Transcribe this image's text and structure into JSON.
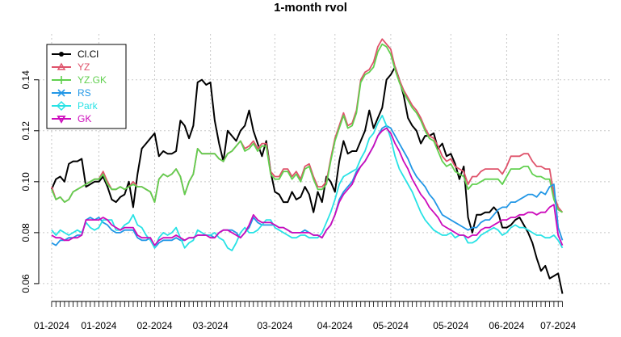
{
  "chart_data": {
    "type": "line",
    "title": "1-month rvol",
    "xlabel": "",
    "ylabel": "",
    "ylim": [
      0.053,
      0.158
    ],
    "yticks": [
      0.06,
      0.08,
      0.1,
      0.12,
      0.14
    ],
    "ytick_labels": [
      "0.06",
      "0.08",
      "0.10",
      "0.12",
      "0.14"
    ],
    "xlim": [
      -3,
      130
    ],
    "x_label_positions": [
      0,
      11,
      24,
      37,
      52,
      66,
      79,
      93,
      106,
      118
    ],
    "x_labels": [
      "01-2024",
      "01-2024",
      "02-2024",
      "03-2024",
      "03-2024",
      "04-2024",
      "05-2024",
      "05-2024",
      "06-2024",
      "07-2024"
    ],
    "grid": true,
    "legend_position": "top-left",
    "x": [
      0,
      1,
      2,
      3,
      4,
      5,
      6,
      7,
      8,
      9,
      10,
      11,
      12,
      13,
      14,
      15,
      16,
      17,
      18,
      19,
      20,
      21,
      22,
      23,
      24,
      25,
      26,
      27,
      28,
      29,
      30,
      31,
      32,
      33,
      34,
      35,
      36,
      37,
      38,
      39,
      40,
      41,
      42,
      43,
      44,
      45,
      46,
      47,
      48,
      49,
      50,
      51,
      52,
      53,
      54,
      55,
      56,
      57,
      58,
      59,
      60,
      61,
      62,
      63,
      64,
      65,
      66,
      67,
      68,
      69,
      70,
      71,
      72,
      73,
      74,
      75,
      76,
      77,
      78,
      79,
      80,
      81,
      82,
      83,
      84,
      85,
      86,
      87,
      88,
      89,
      90,
      91,
      92,
      93,
      94,
      95,
      96,
      97,
      98,
      99,
      100,
      101,
      102,
      103,
      104,
      105,
      106,
      107,
      108,
      109,
      110,
      111,
      112,
      113,
      114,
      115,
      116,
      117,
      118,
      119
    ],
    "series": [
      {
        "name": "Cl.Cl",
        "color": "#000000",
        "marker": "circle",
        "values": [
          0.097,
          0.101,
          0.102,
          0.1,
          0.107,
          0.108,
          0.108,
          0.109,
          0.098,
          0.099,
          0.1,
          0.1,
          0.102,
          0.098,
          0.093,
          0.092,
          0.094,
          0.095,
          0.1,
          0.09,
          0.103,
          0.113,
          0.115,
          0.117,
          0.119,
          0.11,
          0.112,
          0.111,
          0.111,
          0.112,
          0.124,
          0.122,
          0.117,
          0.122,
          0.139,
          0.14,
          0.138,
          0.139,
          0.124,
          0.115,
          0.108,
          0.12,
          0.118,
          0.116,
          0.12,
          0.122,
          0.128,
          0.12,
          0.115,
          0.11,
          0.116,
          0.104,
          0.096,
          0.095,
          0.092,
          0.092,
          0.096,
          0.093,
          0.094,
          0.098,
          0.095,
          0.088,
          0.096,
          0.092,
          0.102,
          0.1,
          0.096,
          0.108,
          0.116,
          0.111,
          0.112,
          0.112,
          0.116,
          0.12,
          0.128,
          0.121,
          0.125,
          0.129,
          0.14,
          0.142,
          0.145,
          0.14,
          0.134,
          0.125,
          0.122,
          0.12,
          0.115,
          0.118,
          0.118,
          0.119,
          0.113,
          0.115,
          0.11,
          0.111,
          0.107,
          0.101,
          0.106,
          0.086,
          0.08,
          0.087,
          0.087,
          0.088,
          0.088,
          0.09,
          0.088,
          0.082,
          0.082,
          0.083,
          0.085,
          0.086,
          0.083,
          0.08,
          0.076,
          0.07,
          0.065,
          0.067,
          0.062,
          0.063,
          0.064,
          0.056
        ]
      },
      {
        "name": "YZ",
        "color": "#df536b",
        "marker": "triangle",
        "values": [
          0.098,
          0.093,
          0.094,
          0.092,
          0.093,
          0.096,
          0.097,
          0.098,
          0.099,
          0.1,
          0.101,
          0.101,
          0.104,
          0.1,
          0.097,
          0.097,
          0.098,
          0.097,
          0.098,
          0.1,
          0.098,
          0.098,
          0.097,
          0.096,
          0.092,
          0.101,
          0.103,
          0.102,
          0.103,
          0.105,
          0.102,
          0.095,
          0.1,
          0.103,
          0.113,
          0.111,
          0.111,
          0.111,
          0.111,
          0.109,
          0.108,
          0.111,
          0.112,
          0.114,
          0.116,
          0.113,
          0.114,
          0.116,
          0.113,
          0.115,
          0.115,
          0.104,
          0.102,
          0.102,
          0.105,
          0.105,
          0.102,
          0.104,
          0.101,
          0.106,
          0.107,
          0.102,
          0.098,
          0.098,
          0.1,
          0.109,
          0.117,
          0.122,
          0.127,
          0.122,
          0.123,
          0.128,
          0.14,
          0.143,
          0.144,
          0.147,
          0.153,
          0.156,
          0.154,
          0.152,
          0.145,
          0.14,
          0.136,
          0.133,
          0.13,
          0.128,
          0.125,
          0.121,
          0.118,
          0.117,
          0.114,
          0.11,
          0.108,
          0.109,
          0.106,
          0.105,
          0.104,
          0.099,
          0.102,
          0.102,
          0.104,
          0.105,
          0.105,
          0.105,
          0.105,
          0.103,
          0.106,
          0.11,
          0.11,
          0.11,
          0.111,
          0.111,
          0.108,
          0.106,
          0.106,
          0.105,
          0.105,
          0.095,
          0.09,
          0.088
        ]
      },
      {
        "name": "YZ.GK",
        "color": "#61d04f",
        "marker": "plus",
        "values": [
          0.097,
          0.093,
          0.094,
          0.092,
          0.093,
          0.096,
          0.097,
          0.098,
          0.099,
          0.1,
          0.101,
          0.101,
          0.103,
          0.099,
          0.097,
          0.097,
          0.098,
          0.097,
          0.098,
          0.099,
          0.098,
          0.098,
          0.097,
          0.096,
          0.092,
          0.101,
          0.103,
          0.102,
          0.103,
          0.105,
          0.102,
          0.095,
          0.1,
          0.103,
          0.113,
          0.111,
          0.111,
          0.111,
          0.111,
          0.109,
          0.108,
          0.111,
          0.112,
          0.114,
          0.116,
          0.112,
          0.113,
          0.115,
          0.112,
          0.114,
          0.114,
          0.103,
          0.101,
          0.101,
          0.104,
          0.104,
          0.101,
          0.103,
          0.1,
          0.105,
          0.106,
          0.101,
          0.097,
          0.097,
          0.099,
          0.108,
          0.116,
          0.121,
          0.126,
          0.121,
          0.122,
          0.127,
          0.139,
          0.142,
          0.143,
          0.145,
          0.151,
          0.154,
          0.153,
          0.15,
          0.144,
          0.139,
          0.135,
          0.132,
          0.129,
          0.127,
          0.124,
          0.12,
          0.117,
          0.116,
          0.112,
          0.108,
          0.106,
          0.107,
          0.104,
          0.103,
          0.102,
          0.097,
          0.099,
          0.099,
          0.1,
          0.101,
          0.101,
          0.101,
          0.101,
          0.099,
          0.102,
          0.105,
          0.105,
          0.105,
          0.106,
          0.106,
          0.103,
          0.102,
          0.102,
          0.101,
          0.101,
          0.093,
          0.089,
          0.088
        ]
      },
      {
        "name": "RS",
        "color": "#2297e6",
        "marker": "cross",
        "values": [
          0.076,
          0.075,
          0.077,
          0.077,
          0.078,
          0.078,
          0.079,
          0.079,
          0.085,
          0.086,
          0.085,
          0.086,
          0.084,
          0.083,
          0.081,
          0.08,
          0.08,
          0.081,
          0.081,
          0.081,
          0.078,
          0.077,
          0.077,
          0.078,
          0.074,
          0.076,
          0.077,
          0.077,
          0.077,
          0.078,
          0.077,
          0.077,
          0.078,
          0.078,
          0.079,
          0.079,
          0.079,
          0.079,
          0.078,
          0.08,
          0.081,
          0.081,
          0.081,
          0.08,
          0.078,
          0.08,
          0.082,
          0.086,
          0.084,
          0.083,
          0.083,
          0.083,
          0.083,
          0.082,
          0.082,
          0.081,
          0.08,
          0.08,
          0.08,
          0.081,
          0.08,
          0.079,
          0.079,
          0.078,
          0.081,
          0.083,
          0.087,
          0.093,
          0.096,
          0.098,
          0.1,
          0.104,
          0.106,
          0.108,
          0.111,
          0.114,
          0.118,
          0.121,
          0.122,
          0.121,
          0.118,
          0.115,
          0.112,
          0.109,
          0.105,
          0.102,
          0.1,
          0.098,
          0.095,
          0.093,
          0.09,
          0.087,
          0.086,
          0.085,
          0.084,
          0.083,
          0.082,
          0.081,
          0.082,
          0.082,
          0.084,
          0.085,
          0.085,
          0.087,
          0.089,
          0.09,
          0.09,
          0.092,
          0.092,
          0.093,
          0.094,
          0.095,
          0.095,
          0.094,
          0.096,
          0.095,
          0.098,
          0.099,
          0.082,
          0.077
        ]
      },
      {
        "name": "Park",
        "color": "#28e2e5",
        "marker": "diamond",
        "values": [
          0.081,
          0.079,
          0.081,
          0.08,
          0.079,
          0.08,
          0.081,
          0.08,
          0.084,
          0.082,
          0.081,
          0.082,
          0.085,
          0.085,
          0.085,
          0.081,
          0.081,
          0.083,
          0.084,
          0.087,
          0.083,
          0.082,
          0.079,
          0.077,
          0.074,
          0.078,
          0.08,
          0.079,
          0.08,
          0.082,
          0.078,
          0.074,
          0.076,
          0.077,
          0.081,
          0.08,
          0.079,
          0.079,
          0.08,
          0.078,
          0.077,
          0.074,
          0.073,
          0.076,
          0.08,
          0.082,
          0.08,
          0.08,
          0.081,
          0.083,
          0.085,
          0.085,
          0.082,
          0.081,
          0.08,
          0.079,
          0.078,
          0.078,
          0.079,
          0.079,
          0.078,
          0.078,
          0.078,
          0.08,
          0.084,
          0.088,
          0.093,
          0.099,
          0.102,
          0.103,
          0.104,
          0.105,
          0.109,
          0.112,
          0.117,
          0.119,
          0.123,
          0.126,
          0.122,
          0.117,
          0.11,
          0.105,
          0.102,
          0.099,
          0.096,
          0.092,
          0.088,
          0.085,
          0.083,
          0.081,
          0.08,
          0.079,
          0.079,
          0.08,
          0.078,
          0.079,
          0.079,
          0.076,
          0.076,
          0.077,
          0.079,
          0.08,
          0.081,
          0.082,
          0.081,
          0.079,
          0.08,
          0.082,
          0.083,
          0.082,
          0.082,
          0.081,
          0.08,
          0.079,
          0.079,
          0.078,
          0.078,
          0.079,
          0.077,
          0.074
        ]
      },
      {
        "name": "GK",
        "color": "#cd0bbc",
        "marker": "triangle-down",
        "values": [
          0.079,
          0.078,
          0.078,
          0.077,
          0.077,
          0.078,
          0.078,
          0.079,
          0.085,
          0.085,
          0.085,
          0.085,
          0.086,
          0.085,
          0.083,
          0.082,
          0.081,
          0.082,
          0.082,
          0.082,
          0.079,
          0.078,
          0.078,
          0.078,
          0.075,
          0.077,
          0.078,
          0.078,
          0.078,
          0.079,
          0.078,
          0.077,
          0.078,
          0.078,
          0.079,
          0.079,
          0.079,
          0.078,
          0.078,
          0.08,
          0.081,
          0.081,
          0.08,
          0.079,
          0.078,
          0.08,
          0.083,
          0.087,
          0.085,
          0.084,
          0.084,
          0.084,
          0.083,
          0.082,
          0.082,
          0.081,
          0.08,
          0.08,
          0.08,
          0.08,
          0.08,
          0.079,
          0.079,
          0.078,
          0.081,
          0.083,
          0.087,
          0.092,
          0.095,
          0.097,
          0.099,
          0.103,
          0.106,
          0.108,
          0.111,
          0.114,
          0.118,
          0.12,
          0.121,
          0.119,
          0.115,
          0.112,
          0.108,
          0.105,
          0.101,
          0.098,
          0.095,
          0.093,
          0.09,
          0.088,
          0.086,
          0.083,
          0.082,
          0.081,
          0.08,
          0.079,
          0.079,
          0.078,
          0.079,
          0.079,
          0.081,
          0.082,
          0.082,
          0.083,
          0.084,
          0.085,
          0.085,
          0.086,
          0.086,
          0.087,
          0.087,
          0.088,
          0.088,
          0.087,
          0.088,
          0.088,
          0.09,
          0.091,
          0.079,
          0.075
        ]
      }
    ]
  }
}
